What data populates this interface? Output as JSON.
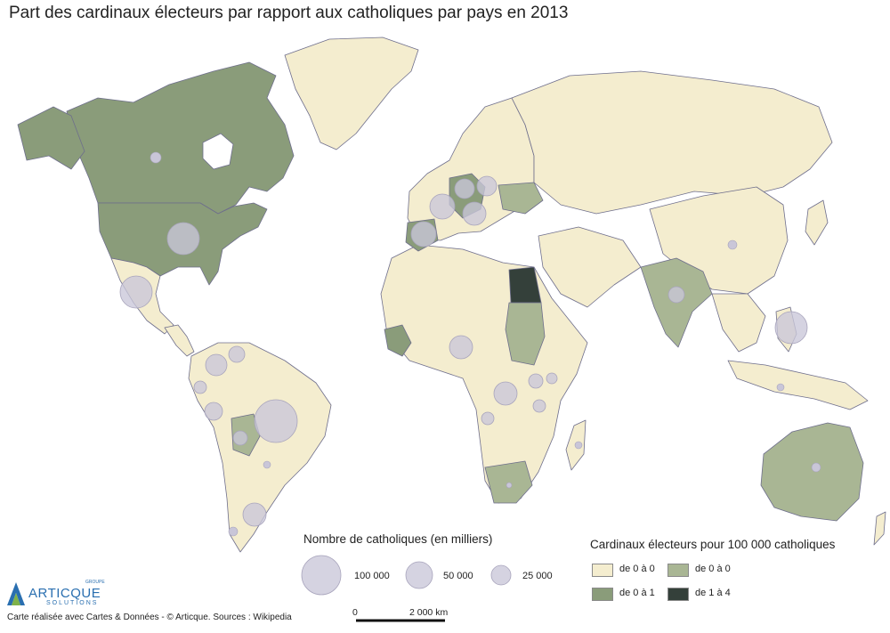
{
  "title": "Part des cardinaux électeurs par rapport aux catholiques par pays en 2013",
  "colors": {
    "class_1": "#f4edcf",
    "class_2": "#a9b694",
    "class_3": "#8a9c7a",
    "class_4": "#34403a",
    "bubble": "#c9c6d8"
  },
  "size_legend": {
    "title": "Nombre de catholiques (en milliers)",
    "items": [
      "100 000",
      "50 000",
      "25 000"
    ]
  },
  "color_legend": {
    "title": "Cardinaux électeurs pour 100 000 catholiques",
    "items": [
      {
        "label": "de 0 à 0",
        "color": "#f4edcf"
      },
      {
        "label": "de 0 à 0",
        "color": "#a9b694"
      },
      {
        "label": "de 0 à 1",
        "color": "#8a9c7a"
      },
      {
        "label": "de 1 à 4",
        "color": "#34403a"
      }
    ]
  },
  "scale": {
    "start": "0",
    "end": "2 000 km"
  },
  "logo": {
    "name": "ARTICQUE",
    "sub": "SOLUTIONS",
    "top": "GROUPE"
  },
  "footer": "Carte réalisée avec Cartes & Données - © Articque. Sources : Wikipedia"
}
